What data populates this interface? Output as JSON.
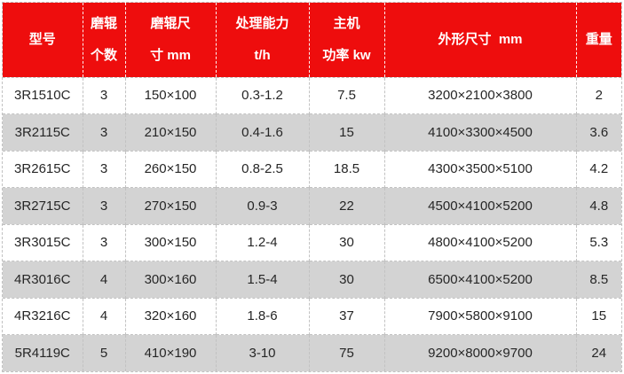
{
  "colors": {
    "header_bg": "#ee0d0d",
    "header_text": "#ffffff",
    "row_bg": "#ffffff",
    "row_alt_bg": "#d3d3d3",
    "body_text": "#262626",
    "grid_line": "#c2c2c2"
  },
  "table": {
    "columns": [
      {
        "id": "model",
        "label_lines": [
          "型号"
        ]
      },
      {
        "id": "roller-count",
        "label_lines": [
          "磨辊",
          "个数"
        ]
      },
      {
        "id": "roller-size",
        "label_lines": [
          "磨辊尺",
          "寸 mm"
        ]
      },
      {
        "id": "capacity",
        "label_lines": [
          "处理能力",
          "t/h"
        ]
      },
      {
        "id": "power",
        "label_lines": [
          "主机",
          "功率 kw"
        ]
      },
      {
        "id": "dimensions",
        "label_lines": [
          "外形尺寸  mm"
        ]
      },
      {
        "id": "weight",
        "label_lines": [
          "重量"
        ]
      }
    ],
    "rows": [
      [
        "3R1510C",
        "3",
        "150×100",
        "0.3-1.2",
        "7.5",
        "3200×2100×3800",
        "2"
      ],
      [
        "3R2115C",
        "3",
        "210×150",
        "0.4-1.6",
        "15",
        "4100×3300×4500",
        "3.6"
      ],
      [
        "3R2615C",
        "3",
        "260×150",
        "0.8-2.5",
        "18.5",
        "4300×3500×5100",
        "4.2"
      ],
      [
        "3R2715C",
        "3",
        "270×150",
        "0.9-3",
        "22",
        "4500×4100×5200",
        "4.8"
      ],
      [
        "3R3015C",
        "3",
        "300×150",
        "1.2-4",
        "30",
        "4800×4100×5200",
        "5.3"
      ],
      [
        "4R3016C",
        "4",
        "300×160",
        "1.5-4",
        "30",
        "6500×4100×5200",
        "8.5"
      ],
      [
        "4R3216C",
        "4",
        "320×160",
        "1.8-6",
        "37",
        "7900×5800×9100",
        "15"
      ],
      [
        "5R4119C",
        "5",
        "410×190",
        "3-10",
        "75",
        "9200×8000×9700",
        "24"
      ]
    ]
  }
}
